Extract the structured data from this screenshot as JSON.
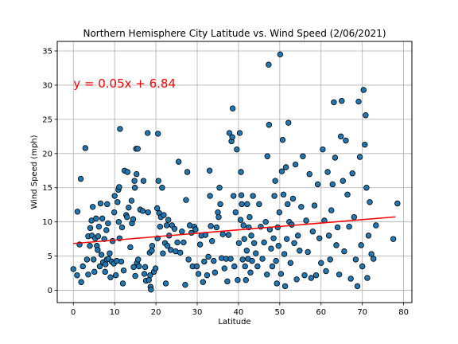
{
  "chart_data": {
    "type": "scatter",
    "title": "Northern Hemisphere City Latitude vs. Wind Speed (2/06/2021)",
    "xlabel": "Latitude",
    "ylabel": "Wind Speed (mph)",
    "xlim": [
      -3.9,
      82
    ],
    "ylim": [
      -1.8,
      36.4
    ],
    "xticks": [
      0,
      10,
      20,
      30,
      40,
      50,
      60,
      70,
      80
    ],
    "yticks": [
      0,
      5,
      10,
      15,
      20,
      25,
      30,
      35
    ],
    "grid": true,
    "regression": {
      "equation": "y = 0.05x + 6.84",
      "slope": 0.05,
      "intercept": 6.84,
      "x_range": [
        0,
        78
      ],
      "color": "#ff0000"
    },
    "annotation_position_data": [
      0,
      30.2
    ],
    "colors": {
      "marker": "#1f77b4",
      "edge": "#000000",
      "line": "#ff0000",
      "grid": "#b0b0b0"
    },
    "points": [
      [
        0.0,
        3.1
      ],
      [
        0.9,
        2.2
      ],
      [
        1.0,
        11.5
      ],
      [
        1.5,
        6.7
      ],
      [
        1.8,
        16.3
      ],
      [
        1.9,
        1.2
      ],
      [
        2.3,
        3.5
      ],
      [
        2.9,
        20.8
      ],
      [
        3.3,
        4.5
      ],
      [
        3.6,
        7.9
      ],
      [
        3.6,
        2.3
      ],
      [
        4.0,
        6.5
      ],
      [
        4.1,
        9.1
      ],
      [
        4.4,
        10.2
      ],
      [
        4.5,
        8.0
      ],
      [
        4.7,
        12.2
      ],
      [
        4.9,
        4.5
      ],
      [
        5.1,
        2.7
      ],
      [
        5.3,
        7.6
      ],
      [
        5.5,
        10.5
      ],
      [
        5.7,
        6.5
      ],
      [
        5.9,
        5.9
      ],
      [
        6.0,
        7.9
      ],
      [
        6.2,
        9.3
      ],
      [
        6.4,
        3.5
      ],
      [
        6.6,
        12.7
      ],
      [
        6.8,
        5.2
      ],
      [
        7.0,
        10.5
      ],
      [
        7.2,
        4.1
      ],
      [
        7.5,
        7.5
      ],
      [
        7.7,
        2.7
      ],
      [
        7.8,
        3.8
      ],
      [
        8.0,
        8.8
      ],
      [
        8.1,
        4.5
      ],
      [
        8.2,
        12.6
      ],
      [
        8.4,
        9.8
      ],
      [
        8.5,
        4.6
      ],
      [
        8.8,
        5.4
      ],
      [
        9.0,
        1.9
      ],
      [
        9.3,
        4.2
      ],
      [
        9.5,
        7.2
      ],
      [
        9.8,
        3.9
      ],
      [
        9.9,
        11.4
      ],
      [
        10.0,
        13.8
      ],
      [
        10.3,
        2.2
      ],
      [
        10.5,
        4.3
      ],
      [
        10.7,
        12.9
      ],
      [
        10.9,
        14.7
      ],
      [
        11.0,
        10.0
      ],
      [
        11.1,
        15.1
      ],
      [
        11.2,
        7.6
      ],
      [
        11.3,
        23.6
      ],
      [
        11.6,
        4.2
      ],
      [
        11.8,
        9.2
      ],
      [
        12.0,
        1.0
      ],
      [
        12.2,
        2.9
      ],
      [
        12.4,
        17.5
      ],
      [
        12.8,
        11.0
      ],
      [
        13.0,
        10.7
      ],
      [
        13.1,
        17.3
      ],
      [
        13.4,
        12.1
      ],
      [
        13.8,
        6.3
      ],
      [
        14.1,
        13.1
      ],
      [
        14.2,
        9.8
      ],
      [
        14.5,
        10.4
      ],
      [
        14.6,
        3.4
      ],
      [
        14.8,
        16.0
      ],
      [
        14.9,
        15.0
      ],
      [
        15.0,
        2.1
      ],
      [
        15.2,
        20.7
      ],
      [
        15.3,
        17.0
      ],
      [
        15.4,
        4.0
      ],
      [
        15.6,
        20.7
      ],
      [
        15.7,
        4.5
      ],
      [
        15.9,
        3.5
      ],
      [
        16.2,
        11.8
      ],
      [
        16.8,
        11.6
      ],
      [
        17.0,
        16.0
      ],
      [
        17.2,
        2.4
      ],
      [
        17.4,
        3.4
      ],
      [
        17.6,
        1.4
      ],
      [
        18.0,
        23.0
      ],
      [
        18.1,
        11.4
      ],
      [
        18.3,
        1.5
      ],
      [
        18.5,
        5.5
      ],
      [
        18.6,
        2.2
      ],
      [
        18.7,
        0.5
      ],
      [
        18.8,
        0.1
      ],
      [
        19.0,
        5.8
      ],
      [
        19.1,
        6.5
      ],
      [
        19.5,
        2.7
      ],
      [
        19.9,
        3.2
      ],
      [
        20.3,
        12.0
      ],
      [
        20.4,
        7.6
      ],
      [
        20.5,
        22.9
      ],
      [
        20.6,
        16.0
      ],
      [
        20.8,
        11.3
      ],
      [
        21.0,
        9.3
      ],
      [
        21.2,
        10.7
      ],
      [
        21.5,
        15.0
      ],
      [
        21.7,
        5.4
      ],
      [
        21.9,
        11.0
      ],
      [
        22.2,
        6.9
      ],
      [
        22.4,
        1.0
      ],
      [
        22.6,
        9.5
      ],
      [
        22.8,
        6.5
      ],
      [
        23.0,
        10.3
      ],
      [
        23.2,
        8.0
      ],
      [
        23.6,
        5.9
      ],
      [
        23.9,
        9.5
      ],
      [
        24.5,
        9.0
      ],
      [
        24.8,
        5.7
      ],
      [
        25.2,
        7.0
      ],
      [
        25.5,
        18.8
      ],
      [
        25.9,
        5.5
      ],
      [
        26.3,
        8.6
      ],
      [
        26.7,
        7.0
      ],
      [
        27.1,
        0.8
      ],
      [
        27.3,
        13.2
      ],
      [
        27.6,
        17.3
      ],
      [
        27.9,
        4.5
      ],
      [
        28.2,
        9.5
      ],
      [
        28.6,
        8.4
      ],
      [
        28.9,
        3.5
      ],
      [
        29.3,
        9.3
      ],
      [
        29.6,
        8.9
      ],
      [
        29.9,
        3.5
      ],
      [
        30.3,
        2.4
      ],
      [
        30.7,
        6.7
      ],
      [
        31.0,
        8.0
      ],
      [
        31.4,
        1.2
      ],
      [
        31.7,
        4.2
      ],
      [
        32.0,
        8.1
      ],
      [
        32.4,
        2.2
      ],
      [
        32.7,
        4.9
      ],
      [
        33.0,
        17.5
      ],
      [
        33.1,
        13.8
      ],
      [
        33.3,
        9.4
      ],
      [
        33.6,
        7.2
      ],
      [
        34.0,
        4.3
      ],
      [
        34.3,
        2.6
      ],
      [
        34.7,
        9.2
      ],
      [
        35.0,
        11.4
      ],
      [
        35.2,
        10.7
      ],
      [
        35.4,
        15.0
      ],
      [
        35.6,
        12.6
      ],
      [
        35.9,
        4.7
      ],
      [
        36.2,
        8.2
      ],
      [
        36.6,
        3.2
      ],
      [
        37.0,
        4.6
      ],
      [
        37.3,
        1.3
      ],
      [
        37.6,
        8.1
      ],
      [
        37.8,
        23.0
      ],
      [
        38.1,
        4.6
      ],
      [
        38.3,
        21.8
      ],
      [
        38.5,
        22.4
      ],
      [
        38.6,
        26.6
      ],
      [
        38.8,
        13.8
      ],
      [
        39.0,
        3.5
      ],
      [
        39.3,
        11.4
      ],
      [
        39.6,
        20.6
      ],
      [
        39.8,
        1.5
      ],
      [
        40.1,
        6.9
      ],
      [
        40.3,
        23.0
      ],
      [
        40.5,
        10.3
      ],
      [
        40.6,
        17.3
      ],
      [
        40.7,
        13.9
      ],
      [
        40.8,
        12.6
      ],
      [
        41.0,
        4.5
      ],
      [
        41.2,
        9.5
      ],
      [
        41.4,
        7.5
      ],
      [
        41.6,
        3.5
      ],
      [
        41.8,
        1.5
      ],
      [
        42.0,
        5.8
      ],
      [
        42.1,
        12.6
      ],
      [
        42.3,
        4.6
      ],
      [
        42.5,
        9.2
      ],
      [
        42.7,
        10.7
      ],
      [
        42.9,
        2.6
      ],
      [
        43.1,
        8.0
      ],
      [
        43.3,
        4.3
      ],
      [
        43.5,
        13.8
      ],
      [
        43.8,
        6.9
      ],
      [
        44.2,
        5.4
      ],
      [
        44.6,
        3.5
      ],
      [
        45.0,
        12.6
      ],
      [
        45.4,
        9.3
      ],
      [
        45.8,
        4.6
      ],
      [
        46.2,
        7.0
      ],
      [
        46.6,
        10.0
      ],
      [
        46.9,
        2.3
      ],
      [
        47.0,
        19.6
      ],
      [
        47.3,
        33.0
      ],
      [
        47.4,
        24.2
      ],
      [
        47.6,
        8.9
      ],
      [
        47.9,
        6.1
      ],
      [
        48.2,
        3.5
      ],
      [
        48.5,
        7.6
      ],
      [
        48.7,
        13.8
      ],
      [
        48.9,
        16.0
      ],
      [
        49.1,
        4.3
      ],
      [
        49.3,
        1.0
      ],
      [
        49.5,
        9.2
      ],
      [
        49.7,
        6.5
      ],
      [
        49.9,
        11.4
      ],
      [
        50.1,
        34.5
      ],
      [
        50.3,
        2.4
      ],
      [
        50.5,
        17.4
      ],
      [
        50.7,
        22.0
      ],
      [
        50.9,
        14.0
      ],
      [
        51.1,
        5.3
      ],
      [
        51.3,
        0.6
      ],
      [
        51.5,
        18.0
      ],
      [
        51.7,
        7.5
      ],
      [
        51.9,
        12.6
      ],
      [
        52.1,
        24.5
      ],
      [
        52.3,
        10.0
      ],
      [
        52.6,
        4.0
      ],
      [
        52.9,
        9.6
      ],
      [
        53.2,
        13.4
      ],
      [
        53.5,
        6.9
      ],
      [
        53.8,
        18.4
      ],
      [
        54.1,
        1.6
      ],
      [
        54.4,
        8.0
      ],
      [
        54.8,
        5.8
      ],
      [
        55.2,
        12.2
      ],
      [
        55.6,
        19.6
      ],
      [
        56.0,
        2.2
      ],
      [
        56.4,
        10.2
      ],
      [
        56.8,
        5.6
      ],
      [
        57.2,
        17.0
      ],
      [
        57.6,
        1.8
      ],
      [
        58.0,
        8.6
      ],
      [
        58.4,
        12.4
      ],
      [
        58.8,
        2.2
      ],
      [
        59.2,
        15.5
      ],
      [
        59.6,
        7.6
      ],
      [
        60.0,
        4.0
      ],
      [
        60.4,
        20.6
      ],
      [
        60.8,
        10.2
      ],
      [
        61.2,
        2.8
      ],
      [
        61.6,
        17.3
      ],
      [
        61.9,
        8.0
      ],
      [
        62.2,
        4.5
      ],
      [
        62.5,
        11.7
      ],
      [
        62.8,
        15.5
      ],
      [
        63.1,
        27.5
      ],
      [
        63.4,
        19.4
      ],
      [
        63.7,
        6.6
      ],
      [
        64.0,
        9.2
      ],
      [
        64.4,
        2.3
      ],
      [
        64.8,
        22.5
      ],
      [
        65.0,
        27.7
      ],
      [
        65.3,
        16.0
      ],
      [
        65.6,
        5.7
      ],
      [
        66.0,
        21.9
      ],
      [
        66.4,
        14.0
      ],
      [
        66.8,
        9.3
      ],
      [
        67.2,
        1.7
      ],
      [
        67.6,
        17.1
      ],
      [
        68.0,
        10.7
      ],
      [
        68.4,
        4.5
      ],
      [
        68.8,
        0.6
      ],
      [
        69.1,
        27.6
      ],
      [
        69.4,
        19.5
      ],
      [
        69.7,
        6.6
      ],
      [
        70.0,
        3.5
      ],
      [
        70.3,
        29.3
      ],
      [
        70.6,
        21.3
      ],
      [
        70.8,
        25.6
      ],
      [
        71.0,
        15.0
      ],
      [
        71.2,
        1.8
      ],
      [
        71.5,
        8.0
      ],
      [
        71.8,
        12.9
      ],
      [
        72.2,
        5.3
      ],
      [
        72.7,
        4.6
      ],
      [
        73.3,
        9.5
      ],
      [
        77.5,
        7.5
      ],
      [
        78.5,
        12.7
      ]
    ]
  }
}
